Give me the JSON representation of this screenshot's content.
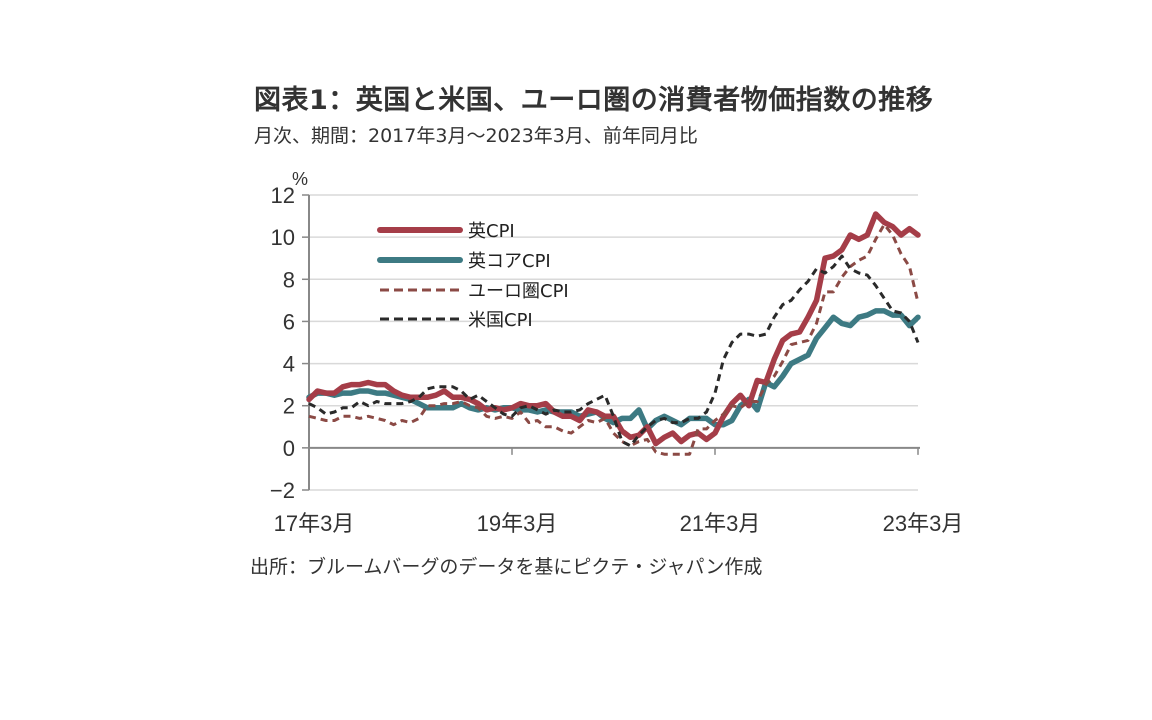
{
  "header": {
    "title": "図表1：英国と米国、ユーロ圏の消費者物価指数の推移",
    "subtitle": "月次、期間：2017年3月～2023年3月、前年同月比"
  },
  "footer": {
    "source": "出所：ブルームバーグのデータを基にピクテ・ジャパン作成"
  },
  "colors": {
    "uk_cpi": "#a53d48",
    "uk_core": "#3d7a83",
    "euro": "#8b4a45",
    "us": "#2a2a2a",
    "grid": "#d9d9d9",
    "axis": "#888888"
  },
  "chart_data": {
    "type": "line",
    "title": "図表1：英国と米国、ユーロ圏の消費者物価指数の推移",
    "subtitle": "月次、期間：2017年3月～2023年3月、前年同月比",
    "ylabel": "%",
    "xlabel": "",
    "ylim": [
      -2,
      12
    ],
    "yticks": [
      "12",
      "10",
      "8",
      "6",
      "4",
      "2",
      "0",
      "−2"
    ],
    "ytick_values": [
      12,
      10,
      8,
      6,
      4,
      2,
      0,
      -2
    ],
    "xticks": [
      "17年3月",
      "19年3月",
      "21年3月",
      "23年3月"
    ],
    "xtick_index": [
      0,
      24,
      48,
      72
    ],
    "x_start": "2017-03",
    "x_end": "2023-03",
    "frequency": "monthly",
    "grid": true,
    "legend_position": "top-left",
    "series": [
      {
        "name": "英CPI",
        "style": "solid",
        "values": [
          2.3,
          2.7,
          2.6,
          2.6,
          2.9,
          3.0,
          3.0,
          3.1,
          3.0,
          3.0,
          2.7,
          2.5,
          2.4,
          2.4,
          2.4,
          2.5,
          2.7,
          2.4,
          2.4,
          2.3,
          2.1,
          1.8,
          1.9,
          1.8,
          1.9,
          2.1,
          2.0,
          2.0,
          2.1,
          1.7,
          1.5,
          1.5,
          1.3,
          1.8,
          1.7,
          1.5,
          1.5,
          0.8,
          0.5,
          0.6,
          1.0,
          0.2,
          0.5,
          0.7,
          0.3,
          0.6,
          0.7,
          0.4,
          0.7,
          1.5,
          2.1,
          2.5,
          2.0,
          3.2,
          3.1,
          4.2,
          5.1,
          5.4,
          5.5,
          6.2,
          7.0,
          9.0,
          9.1,
          9.4,
          10.1,
          9.9,
          10.1,
          11.1,
          10.7,
          10.5,
          10.1,
          10.4,
          10.1
        ]
      },
      {
        "name": "英コアCPI",
        "style": "solid",
        "values": [
          2.4,
          2.6,
          2.6,
          2.5,
          2.6,
          2.6,
          2.7,
          2.7,
          2.6,
          2.6,
          2.5,
          2.4,
          2.3,
          2.1,
          1.9,
          1.9,
          1.9,
          1.9,
          2.1,
          1.9,
          1.8,
          1.9,
          1.8,
          1.9,
          1.9,
          1.8,
          1.8,
          1.7,
          1.8,
          1.7,
          1.7,
          1.7,
          1.5,
          1.6,
          1.7,
          1.4,
          1.2,
          1.4,
          1.4,
          1.8,
          0.9,
          1.3,
          1.5,
          1.3,
          1.1,
          1.4,
          1.4,
          1.4,
          1.1,
          1.1,
          1.3,
          2.0,
          2.3,
          1.8,
          3.1,
          2.9,
          3.4,
          4.0,
          4.2,
          4.4,
          5.2,
          5.7,
          6.2,
          5.9,
          5.8,
          6.2,
          6.3,
          6.5,
          6.5,
          6.3,
          6.3,
          5.8,
          6.2
        ]
      },
      {
        "name": "ユーロ圏CPI",
        "style": "dashed",
        "values": [
          1.5,
          1.4,
          1.3,
          1.3,
          1.5,
          1.5,
          1.4,
          1.5,
          1.4,
          1.3,
          1.1,
          1.3,
          1.2,
          1.4,
          2.0,
          2.0,
          2.1,
          2.1,
          2.2,
          2.0,
          1.9,
          1.5,
          1.4,
          1.5,
          1.4,
          1.7,
          1.2,
          1.3,
          1.0,
          1.0,
          0.8,
          0.7,
          1.0,
          1.3,
          1.2,
          1.4,
          0.7,
          0.3,
          0.1,
          0.3,
          0.4,
          -0.2,
          -0.3,
          -0.3,
          -0.3,
          -0.3,
          0.9,
          0.9,
          1.3,
          1.6,
          2.0,
          1.9,
          2.2,
          2.2,
          3.0,
          3.4,
          4.1,
          4.9,
          5.0,
          5.1,
          5.9,
          7.4,
          7.4,
          8.1,
          8.6,
          8.9,
          9.1,
          9.9,
          10.6,
          10.1,
          9.2,
          8.6,
          6.9
        ]
      },
      {
        "name": "米国CPI",
        "style": "dashed",
        "values": [
          2.1,
          1.9,
          1.6,
          1.7,
          1.9,
          1.9,
          2.2,
          2.0,
          2.2,
          2.1,
          2.1,
          2.1,
          2.2,
          2.4,
          2.8,
          2.9,
          2.9,
          2.9,
          2.7,
          2.3,
          2.5,
          2.2,
          1.9,
          1.6,
          1.5,
          1.9,
          2.0,
          1.8,
          1.6,
          1.8,
          1.7,
          1.7,
          1.8,
          2.1,
          2.3,
          2.5,
          1.5,
          0.3,
          0.1,
          0.6,
          1.0,
          1.3,
          1.4,
          1.2,
          1.2,
          1.4,
          1.4,
          1.7,
          2.6,
          4.2,
          5.0,
          5.4,
          5.4,
          5.3,
          5.4,
          6.2,
          6.8,
          7.0,
          7.5,
          7.9,
          8.5,
          8.3,
          8.6,
          9.1,
          8.5,
          8.3,
          8.2,
          7.7,
          7.1,
          6.5,
          6.4,
          6.0,
          5.0
        ]
      }
    ]
  }
}
